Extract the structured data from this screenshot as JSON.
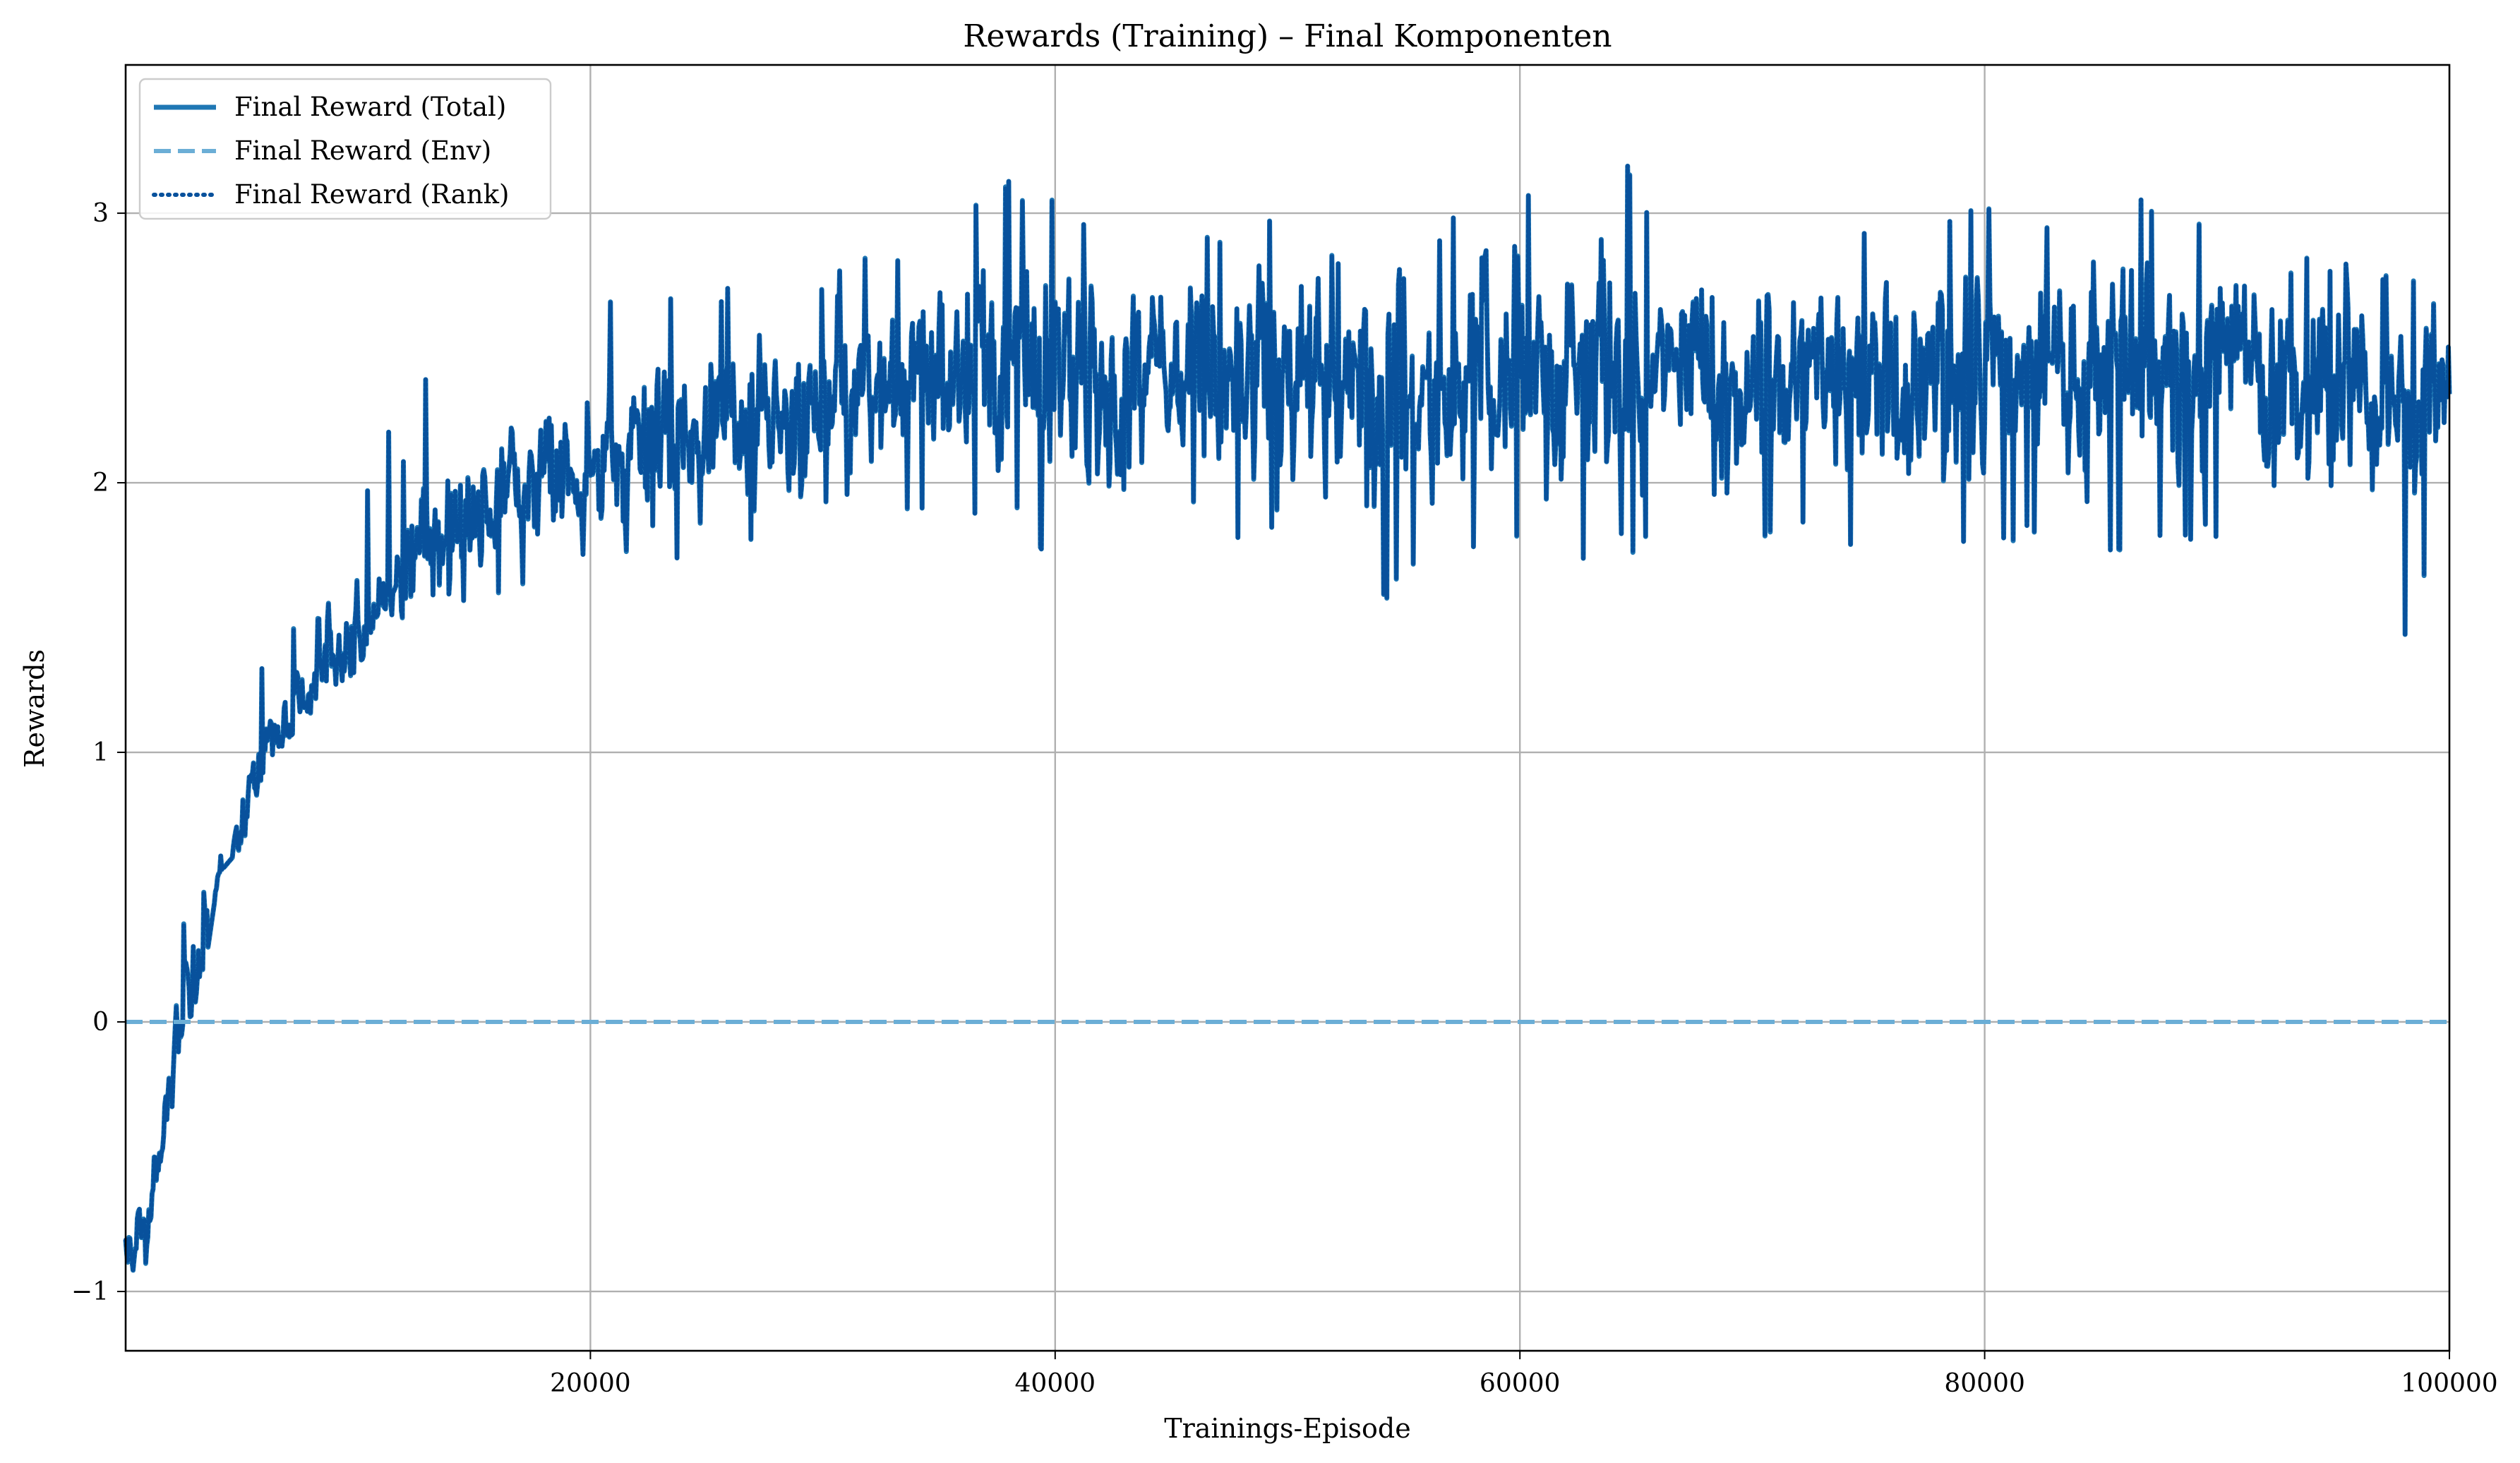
{
  "chart_data": {
    "type": "line",
    "title": "Rewards (Training) – Final Komponenten",
    "xlabel": "Trainings-Episode",
    "ylabel": "Rewards",
    "xlim": [
      0,
      100000
    ],
    "ylim": [
      -1.22,
      3.55
    ],
    "x_ticks": [
      20000,
      40000,
      60000,
      80000,
      100000
    ],
    "x_tick_labels": [
      "20000",
      "40000",
      "60000",
      "80000",
      "100000"
    ],
    "y_ticks": [
      -1,
      0,
      1,
      2,
      3
    ],
    "y_tick_labels": [
      "−1",
      "0",
      "1",
      "2",
      "3"
    ],
    "grid": true,
    "legend_position": "top-left",
    "series": [
      {
        "name": "Final Reward (Total)",
        "style": "solid",
        "color": "#1f77b4",
        "x": [
          0,
          1000,
          2000,
          3000,
          4000,
          5000,
          6000,
          7000,
          8000,
          9000,
          10000,
          11000,
          12000,
          13000,
          14000,
          15000,
          16000,
          17000,
          18000,
          19000,
          20000,
          21000,
          22000,
          23000,
          24000,
          25000,
          26000,
          27000,
          28000,
          29000,
          30000,
          32000,
          34000,
          36000,
          38000,
          40000,
          42000,
          44000,
          46000,
          48000,
          50000,
          52000,
          54000,
          56000,
          58000,
          60000,
          62000,
          64000,
          66000,
          68000,
          70000,
          72000,
          74000,
          76000,
          78000,
          80000,
          82000,
          84000,
          86000,
          88000,
          90000,
          92000,
          94000,
          96000,
          98000,
          100000
        ],
        "values": [
          -0.85,
          -0.72,
          -0.2,
          0.25,
          0.45,
          0.8,
          1.0,
          1.1,
          1.25,
          1.35,
          1.45,
          1.55,
          1.7,
          1.75,
          1.8,
          1.85,
          1.9,
          1.95,
          2.0,
          2.02,
          2.05,
          2.1,
          2.12,
          2.15,
          2.18,
          2.2,
          2.22,
          2.25,
          2.25,
          2.27,
          2.3,
          2.35,
          2.38,
          2.4,
          2.42,
          2.43,
          2.42,
          2.4,
          2.42,
          2.45,
          2.43,
          2.35,
          2.3,
          2.32,
          2.35,
          2.4,
          2.38,
          2.35,
          2.4,
          2.38,
          2.4,
          2.4,
          2.38,
          2.4,
          2.42,
          2.4,
          2.42,
          2.4,
          2.45,
          2.48,
          2.45,
          2.4,
          2.35,
          2.3,
          2.3,
          2.4
        ],
        "envelope_low": [
          -0.95,
          -0.9,
          -0.4,
          -0.05,
          0.55,
          0.65,
          0.95,
          1.05,
          1.15,
          1.25,
          1.3,
          1.55,
          1.45,
          1.35,
          1.4,
          1.5,
          1.55,
          1.6,
          1.7,
          1.7,
          1.75,
          1.85,
          1.6,
          1.24,
          1.85,
          1.85,
          1.85,
          1.55,
          1.95,
          1.95,
          1.9,
          1.8,
          1.85,
          1.85,
          1.9,
          1.65,
          1.8,
          1.8,
          1.75,
          1.8,
          1.85,
          1.65,
          1.52,
          1.75,
          1.75,
          1.8,
          1.75,
          1.65,
          1.8,
          1.7,
          1.75,
          1.8,
          1.75,
          1.6,
          1.75,
          1.7,
          1.8,
          1.7,
          1.75,
          1.75,
          1.8,
          1.75,
          1.65,
          1.65,
          1.4,
          1.85
        ],
        "envelope_high": [
          -0.62,
          -0.48,
          0.05,
          0.7,
          0.9,
          1.2,
          1.35,
          1.45,
          1.6,
          1.75,
          1.85,
          2.25,
          2.1,
          2.45,
          2.3,
          2.2,
          2.3,
          2.4,
          2.85,
          2.5,
          2.6,
          2.7,
          2.6,
          2.7,
          2.75,
          2.7,
          2.75,
          2.95,
          2.6,
          2.8,
          2.75,
          2.85,
          2.9,
          3.0,
          3.12,
          3.05,
          2.9,
          2.9,
          2.95,
          2.95,
          3.05,
          2.85,
          2.95,
          2.85,
          3.12,
          3.12,
          2.95,
          3.32,
          2.95,
          2.95,
          3.15,
          2.9,
          2.95,
          2.95,
          2.95,
          3.05,
          2.95,
          3.05,
          3.05,
          3.05,
          3.0,
          2.85,
          2.85,
          2.8,
          2.75,
          2.88
        ]
      },
      {
        "name": "Final Reward (Env)",
        "style": "dashed",
        "color": "#6baed6",
        "x": [
          0,
          100000
        ],
        "values": [
          0,
          0
        ]
      },
      {
        "name": "Final Reward (Rank)",
        "style": "dotted",
        "color": "#08519c",
        "same_as": "Final Reward (Total)"
      }
    ]
  }
}
